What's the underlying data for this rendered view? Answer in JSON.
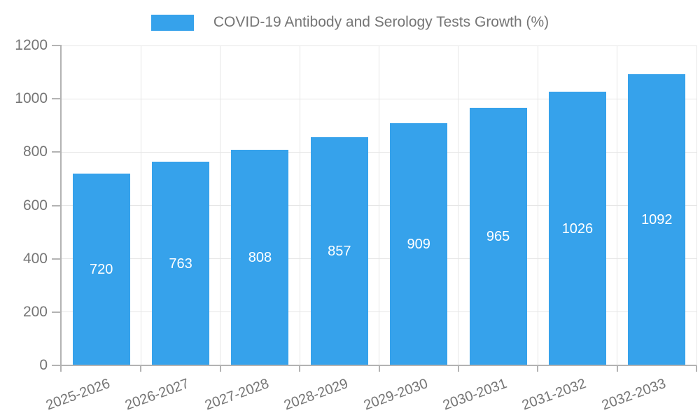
{
  "legend": {
    "swatch_color": "#36A2EB",
    "label": "COVID-19 Antibody and Serology Tests Growth (%)"
  },
  "chart_data": {
    "type": "bar",
    "title": "COVID-19 Antibody and Serology Tests Growth (%)",
    "categories": [
      "2025-2026",
      "2026-2027",
      "2027-2028",
      "2028-2029",
      "2029-2030",
      "2030-2031",
      "2031-2032",
      "2032-2033"
    ],
    "values": [
      720,
      763,
      808,
      857,
      909,
      965,
      1026,
      1092
    ],
    "value_labels": [
      "720",
      "763",
      "808",
      "857",
      "909",
      "965",
      "1026",
      "1092"
    ],
    "xlabel": "",
    "ylabel": "",
    "ylim": [
      0,
      1200
    ],
    "yticks": [
      0,
      200,
      400,
      600,
      800,
      1000,
      1200
    ],
    "grid": "both",
    "legend_position": "top-center",
    "x_label_rotation_deg": -20
  },
  "colors": {
    "bar": "#36A2EB",
    "bar_value_text": "#FFFFFF",
    "grid_line": "#E6E6E6",
    "axis_line": "#B3B3B3",
    "tick_text": "#757575",
    "title_text": "#757575",
    "background": "#FFFFFF"
  }
}
